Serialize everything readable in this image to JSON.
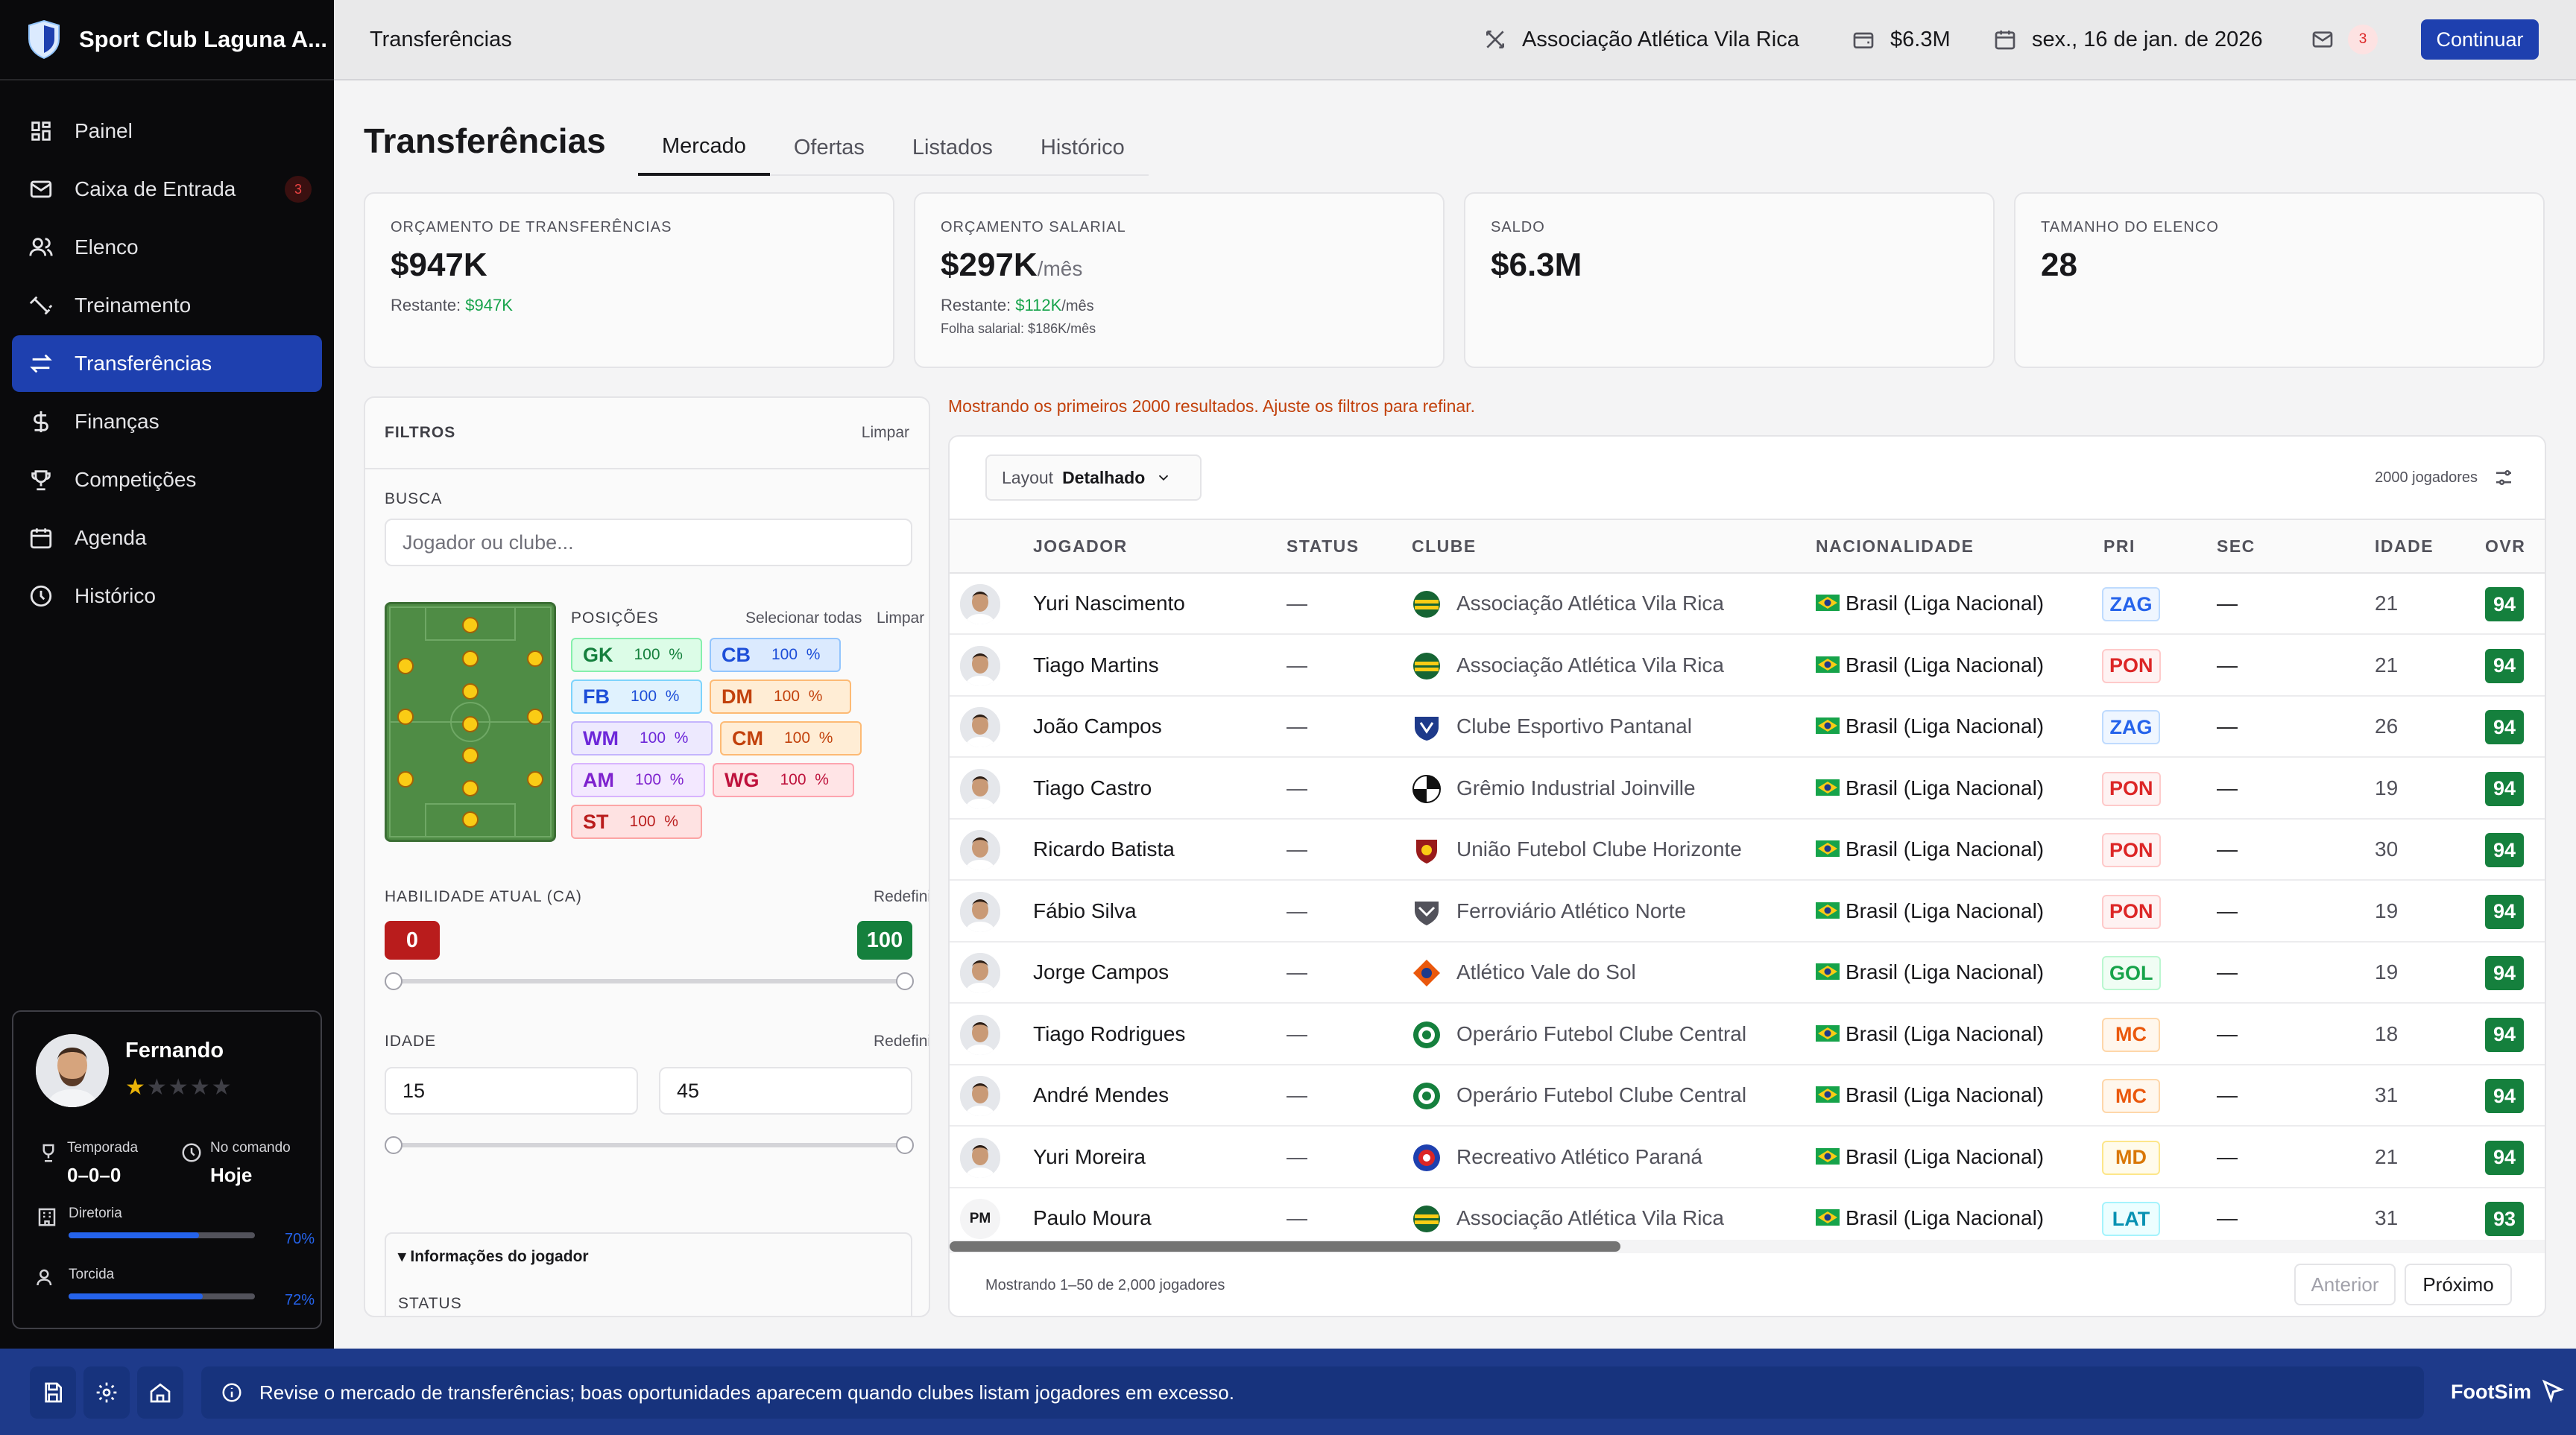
{
  "app": {
    "club_name": "Sport Club Laguna A..."
  },
  "nav": [
    {
      "label": "Painel",
      "icon": "dashboard-icon"
    },
    {
      "label": "Caixa de Entrada",
      "icon": "mail-icon",
      "badge": "3"
    },
    {
      "label": "Elenco",
      "icon": "users-icon"
    },
    {
      "label": "Treinamento",
      "icon": "training-icon"
    },
    {
      "label": "Transferências",
      "icon": "transfer-icon",
      "active": true
    },
    {
      "label": "Finanças",
      "icon": "dollar-icon"
    },
    {
      "label": "Competições",
      "icon": "trophy-icon"
    },
    {
      "label": "Agenda",
      "icon": "calendar-icon"
    },
    {
      "label": "Histórico",
      "icon": "clock-icon"
    }
  ],
  "manager": {
    "name": "Fernando",
    "stars": "★",
    "stars_off": "★★★★",
    "season_label": "Temporada",
    "season_value": "0–0–0",
    "command_label": "No comando",
    "command_value": "Hoje",
    "board_label": "Diretoria",
    "board_pct": "70%",
    "board_value": 0.7,
    "fans_label": "Torcida",
    "fans_pct": "72%",
    "fans_value": 0.72
  },
  "topbar": {
    "breadcrumb": "Transferências",
    "next_opponent": "Associação Atlética Vila Rica",
    "balance": "$6.3M",
    "date": "sex., 16 de jan. de 2026",
    "mail_count": "3",
    "continue_label": "Continuar"
  },
  "page": {
    "title": "Transferências",
    "tabs": [
      "Mercado",
      "Ofertas",
      "Listados",
      "Histórico"
    ]
  },
  "stats": {
    "transfer_budget": {
      "label": "ORÇAMENTO DE TRANSFERÊNCIAS",
      "value": "$947K",
      "remaining_label": "Restante:",
      "remaining": "$947K"
    },
    "wage_budget": {
      "label": "ORÇAMENTO SALARIAL",
      "value": "$297K",
      "unit": "/mês",
      "remaining_label": "Restante:",
      "remaining": "$112K",
      "remaining_unit": "/mês",
      "payroll": "Folha salarial: $186K/mês"
    },
    "balance": {
      "label": "SALDO",
      "value": "$6.3M"
    },
    "squad_size": {
      "label": "TAMANHO DO ELENCO",
      "value": "28"
    }
  },
  "filters": {
    "title": "FILTROS",
    "clear": "Limpar",
    "search_label": "BUSCA",
    "search_placeholder": "Jogador ou clube...",
    "positions_label": "POSIÇÕES",
    "select_all": "Selecionar todas",
    "positions_clear": "Limpar",
    "positions": [
      {
        "code": "GK",
        "pct": "100"
      },
      {
        "code": "CB",
        "pct": "100"
      },
      {
        "code": "FB",
        "pct": "100"
      },
      {
        "code": "DM",
        "pct": "100"
      },
      {
        "code": "WM",
        "pct": "100"
      },
      {
        "code": "CM",
        "pct": "100"
      },
      {
        "code": "AM",
        "pct": "100"
      },
      {
        "code": "WG",
        "pct": "100"
      },
      {
        "code": "ST",
        "pct": "100"
      }
    ],
    "pct_sign": "%",
    "ca_label": "HABILIDADE ATUAL (CA)",
    "ca_reset": "Redefinir",
    "ca_min": "0",
    "ca_max": "100",
    "age_label": "IDADE",
    "age_reset": "Redefinir",
    "age_min": "15",
    "age_max": "45",
    "player_info": "▾ Informações do jogador",
    "status_label": "STATUS"
  },
  "notice": "Mostrando os primeiros 2000 resultados. Ajuste os filtros para refinar.",
  "table": {
    "layout_label": "Layout",
    "layout_value": "Detalhado",
    "count": "2000 jogadores",
    "columns": [
      "JOGADOR",
      "STATUS",
      "CLUBE",
      "NACIONALIDADE",
      "PRI",
      "SEC",
      "IDADE",
      "OVR"
    ],
    "rows": [
      {
        "name": "Yuri Nascimento",
        "status": "—",
        "club": "Associação Atlética Vila Rica",
        "nat": "Brasil (Liga Nacional)",
        "pri": "ZAG",
        "sec": "—",
        "age": "21",
        "ovr": "94"
      },
      {
        "name": "Tiago Martins",
        "status": "—",
        "club": "Associação Atlética Vila Rica",
        "nat": "Brasil (Liga Nacional)",
        "pri": "PON",
        "sec": "—",
        "age": "21",
        "ovr": "94"
      },
      {
        "name": "João Campos",
        "status": "—",
        "club": "Clube Esportivo Pantanal",
        "nat": "Brasil (Liga Nacional)",
        "pri": "ZAG",
        "sec": "—",
        "age": "26",
        "ovr": "94"
      },
      {
        "name": "Tiago Castro",
        "status": "—",
        "club": "Grêmio Industrial Joinville",
        "nat": "Brasil (Liga Nacional)",
        "pri": "PON",
        "sec": "—",
        "age": "19",
        "ovr": "94"
      },
      {
        "name": "Ricardo Batista",
        "status": "—",
        "club": "União Futebol Clube Horizonte",
        "nat": "Brasil (Liga Nacional)",
        "pri": "PON",
        "sec": "—",
        "age": "30",
        "ovr": "94"
      },
      {
        "name": "Fábio Silva",
        "status": "—",
        "club": "Ferroviário Atlético Norte",
        "nat": "Brasil (Liga Nacional)",
        "pri": "PON",
        "sec": "—",
        "age": "19",
        "ovr": "94"
      },
      {
        "name": "Jorge Campos",
        "status": "—",
        "club": "Atlético Vale do Sol",
        "nat": "Brasil (Liga Nacional)",
        "pri": "GOL",
        "sec": "—",
        "age": "19",
        "ovr": "94"
      },
      {
        "name": "Tiago Rodrigues",
        "status": "—",
        "club": "Operário Futebol Clube Central",
        "nat": "Brasil (Liga Nacional)",
        "pri": "MC",
        "sec": "—",
        "age": "18",
        "ovr": "94"
      },
      {
        "name": "André Mendes",
        "status": "—",
        "club": "Operário Futebol Clube Central",
        "nat": "Brasil (Liga Nacional)",
        "pri": "MC",
        "sec": "—",
        "age": "31",
        "ovr": "94"
      },
      {
        "name": "Yuri Moreira",
        "status": "—",
        "club": "Recreativo Atlético Paraná",
        "nat": "Brasil (Liga Nacional)",
        "pri": "MD",
        "sec": "—",
        "age": "21",
        "ovr": "94"
      },
      {
        "name": "Paulo Moura",
        "status": "—",
        "club": "Associação Atlética Vila Rica",
        "nat": "Brasil (Liga Nacional)",
        "pri": "LAT",
        "sec": "—",
        "age": "31",
        "ovr": "93",
        "initials": "PM"
      }
    ],
    "footer": "Mostrando 1–50 de 2,000 jogadores",
    "prev": "Anterior",
    "next": "Próximo"
  },
  "bottombar": {
    "message": "Revise o mercado de transferências; boas oportunidades aparecem quando clubes listam jogadores em excesso.",
    "brand": "FootSim"
  },
  "colors": {
    "accent": "#1e40af",
    "ovr_green": "#15803d",
    "pos_ZAG": "#2563eb",
    "pos_PON": "#dc2626",
    "pos_GOL": "#16a34a",
    "pos_MC": "#ea580c",
    "pos_MD": "#d97706",
    "pos_LAT": "#0891b2"
  }
}
